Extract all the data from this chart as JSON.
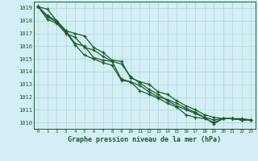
{
  "title": "Graphe pression niveau de la mer (hPa)",
  "bg_color": "#d4eef5",
  "grid_color": "#b8ddd8",
  "line_color": "#1a5c2a",
  "xlim": [
    -0.5,
    23.5
  ],
  "ylim": [
    1009.5,
    1019.5
  ],
  "yticks": [
    1010,
    1011,
    1012,
    1013,
    1014,
    1015,
    1016,
    1017,
    1018,
    1019
  ],
  "xticks": [
    0,
    1,
    2,
    3,
    4,
    5,
    6,
    7,
    8,
    9,
    10,
    11,
    12,
    13,
    14,
    15,
    16,
    17,
    18,
    19,
    20,
    21,
    22,
    23
  ],
  "series": [
    [
      1019.1,
      1018.9,
      1018.0,
      1017.2,
      1017.0,
      1016.8,
      1015.9,
      1015.5,
      1014.9,
      1014.8,
      1013.5,
      1013.2,
      1013.0,
      1012.4,
      1012.2,
      1011.7,
      1011.3,
      1011.0,
      1010.6,
      1010.4,
      1010.3,
      1010.3,
      1010.3,
      1010.2
    ],
    [
      1019.1,
      1018.4,
      1018.0,
      1017.2,
      1016.2,
      1016.0,
      1015.1,
      1014.9,
      1014.8,
      1013.4,
      1013.2,
      1012.9,
      1012.4,
      1012.0,
      1011.8,
      1011.5,
      1011.1,
      1010.8,
      1010.4,
      1010.2,
      1010.3,
      1010.3,
      1010.2,
      1010.2
    ],
    [
      1019.1,
      1018.3,
      1017.9,
      1017.1,
      1016.1,
      1015.3,
      1015.0,
      1014.7,
      1014.5,
      1013.3,
      1013.2,
      1012.5,
      1012.2,
      1011.9,
      1011.5,
      1011.2,
      1010.6,
      1010.4,
      1010.3,
      1010.0,
      1010.3,
      1010.3,
      1010.2,
      1010.2
    ],
    [
      1019.1,
      1018.1,
      1017.8,
      1017.0,
      1016.7,
      1015.9,
      1015.7,
      1015.2,
      1014.8,
      1014.6,
      1013.6,
      1013.1,
      1012.6,
      1012.2,
      1011.7,
      1011.3,
      1011.0,
      1010.7,
      1010.4,
      1009.9,
      1010.3,
      1010.3,
      1010.2,
      1010.2
    ]
  ]
}
